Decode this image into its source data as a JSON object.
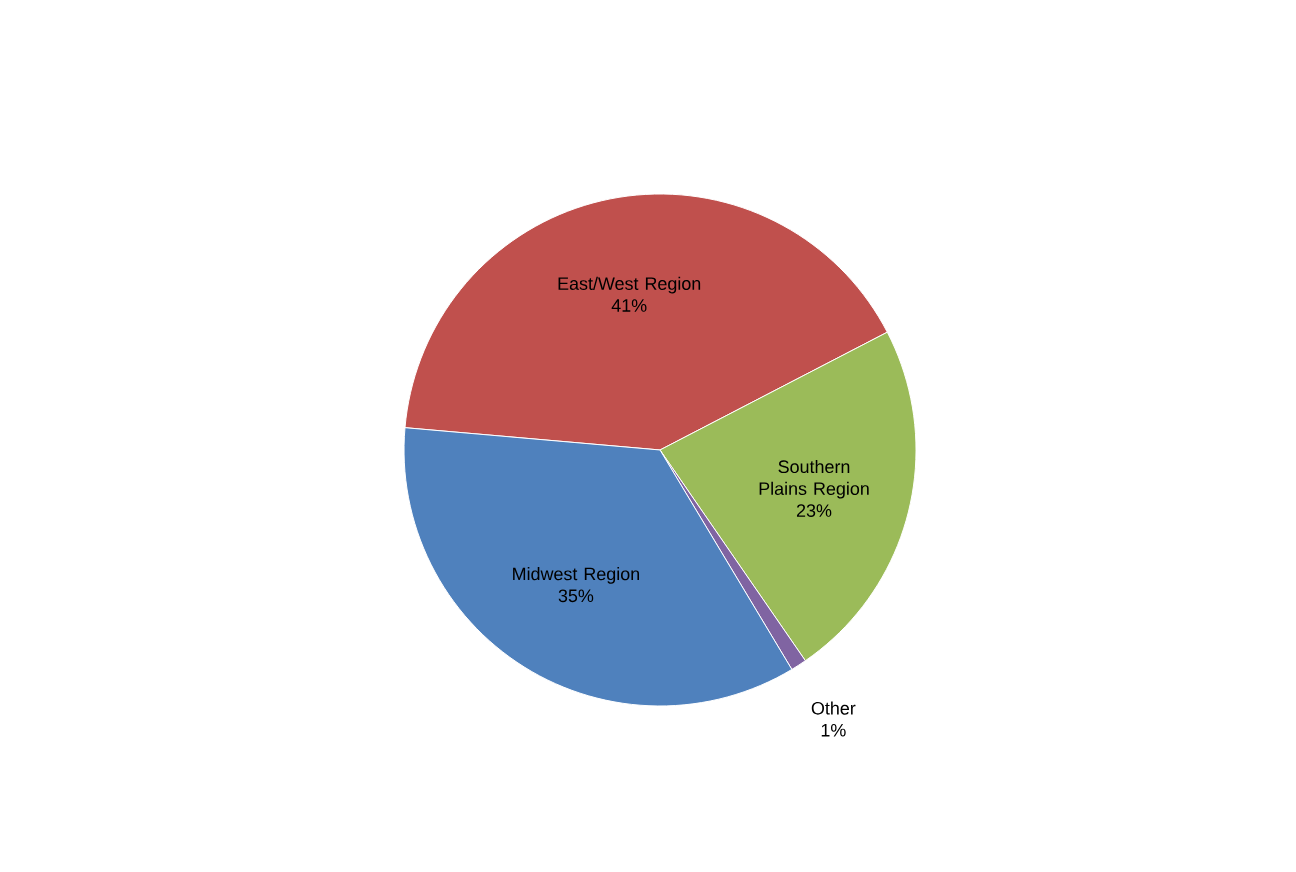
{
  "chart_data": {
    "type": "pie",
    "categories": [
      "East/West Region",
      "Southern Plains Region",
      "Other",
      "Midwest Region"
    ],
    "values": [
      41,
      23,
      1,
      35
    ],
    "value_labels": [
      "41%",
      "23%",
      "1%",
      "35%"
    ],
    "colors": [
      "#c0504d",
      "#9bbb59",
      "#8064a2",
      "#4f81bd"
    ]
  }
}
